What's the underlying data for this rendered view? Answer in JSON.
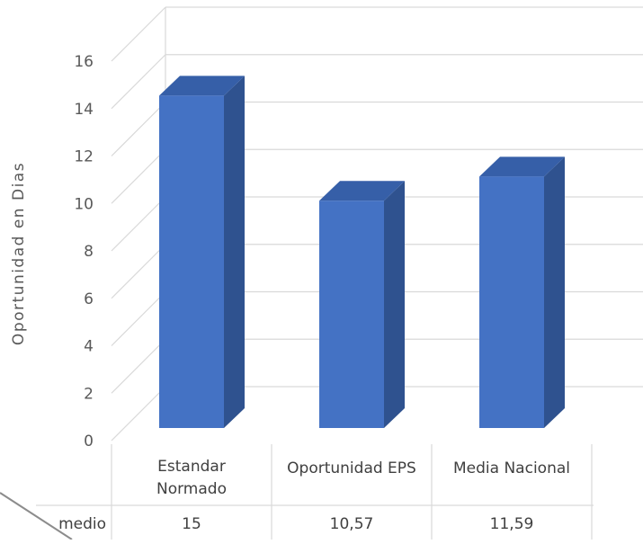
{
  "chart_data": {
    "type": "bar",
    "categories": [
      [
        "Estandar",
        "Normado"
      ],
      [
        "Oportunidad EPS"
      ],
      [
        "Media Nacional"
      ]
    ],
    "values": [
      15,
      10.57,
      11.59
    ],
    "value_labels": [
      "15",
      "10,57",
      "11,59"
    ],
    "row_label": "medio",
    "ylabel": "Oportunidad en Dias",
    "ylim": [
      0,
      16
    ],
    "yticks": [
      "0",
      "2",
      "4",
      "6",
      "8",
      "10",
      "12",
      "14",
      "16"
    ],
    "grid": true,
    "style": "3d-column",
    "colors": {
      "bar_front": "#4472c4",
      "bar_side": "#2f528f",
      "bar_top": "#365fa8",
      "grid": "#d9d9d9"
    }
  }
}
